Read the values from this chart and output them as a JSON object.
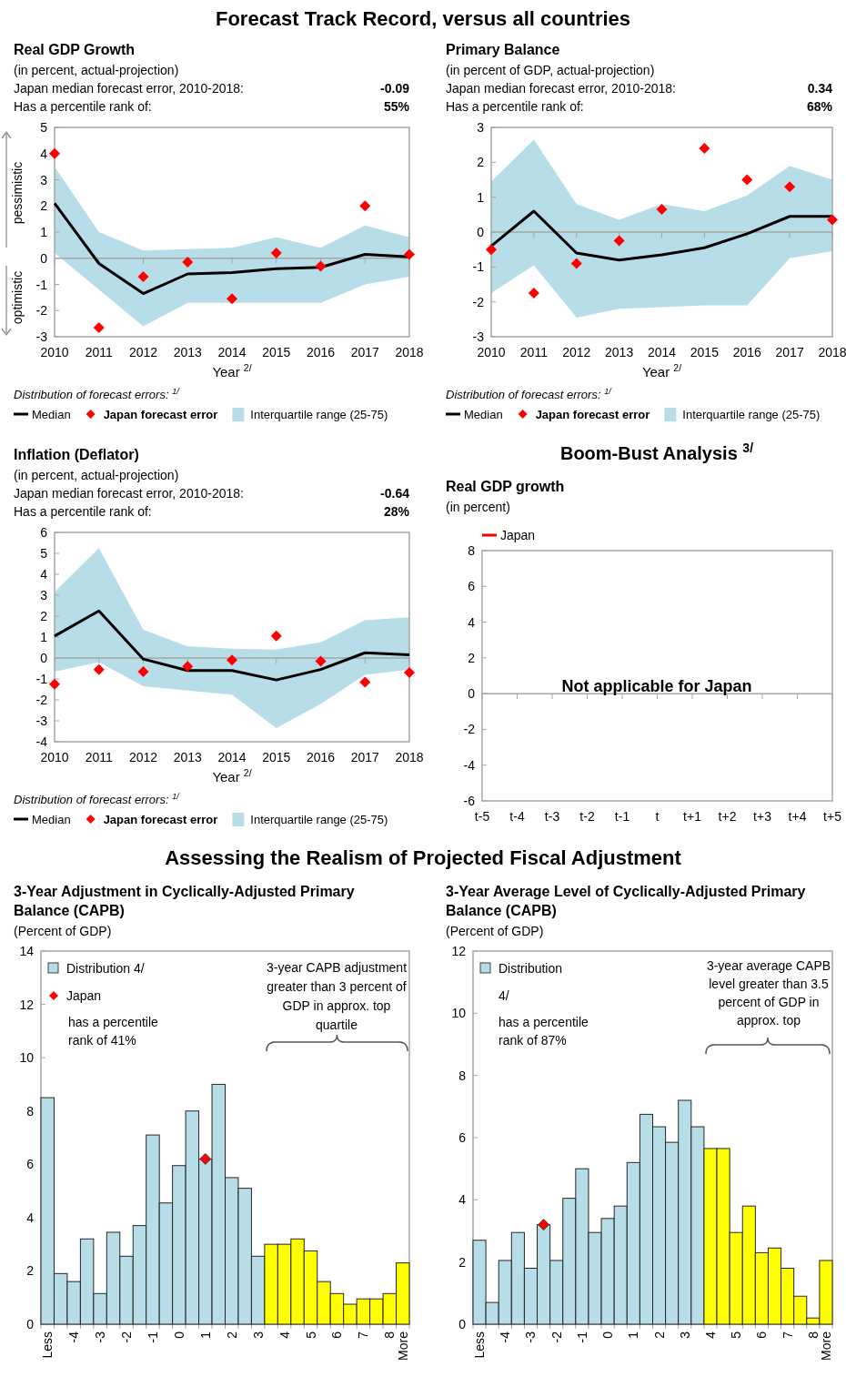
{
  "chart_data": [
    {
      "type": "line",
      "title": "Real GDP Growth",
      "subtitle": "(in percent, actual-projection)",
      "xlabel": "Year $^{2/}$",
      "legend_title": "Distribution of forecast errors: $^{1/}$",
      "legend": "bottom left",
      "annotations": [
        "Forecast Track Record, versus all countries",
        "Japan median forecast error, 2010-2018:",
        "Has a percentile rank of:",
        "-0.09",
        "55%",
        "pessimistic",
        "optimistic",
        "Interquartile range (25-75)"
      ],
      "x": [
        2010,
        2011,
        2012,
        2013,
        2014,
        2015,
        2016,
        2017,
        2018
      ],
      "xlim": [
        2010,
        2018
      ],
      "xticks": [
        2010,
        2011,
        2012,
        2013,
        2014,
        2015,
        2016,
        2017,
        2018
      ],
      "ylim": [
        -3,
        5
      ],
      "yticks": [
        -3,
        -2,
        -1,
        0,
        1,
        2,
        3,
        4,
        5
      ],
      "series": [
        {
          "name": "Median",
          "type": "line",
          "color": "#000000",
          "values": [
            2.1,
            -0.2,
            -1.35,
            -0.6,
            -0.55,
            -0.4,
            -0.35,
            0.15,
            0.05
          ],
          "lower": [
            0.2,
            -1.2,
            -2.6,
            -1.7,
            -1.7,
            -1.7,
            -1.7,
            -1.0,
            -0.7
          ],
          "upper": [
            3.5,
            1.0,
            0.3,
            0.35,
            0.4,
            0.8,
            0.4,
            1.25,
            0.8
          ]
        },
        {
          "name": "Japan forecast error",
          "type": "scatter",
          "marker": "diamond",
          "color": "#ff0000",
          "values": [
            4.0,
            -2.65,
            -0.7,
            -0.15,
            -1.55,
            0.2,
            -0.3,
            2.0,
            0.15
          ]
        }
      ]
    },
    {
      "type": "line",
      "title": "Primary Balance",
      "subtitle": "(in percent of GDP, actual-projection)",
      "xlabel": "Year $^{2/}$",
      "legend_title": "Distribution of forecast errors: $^{1/}$",
      "legend": "bottom left",
      "annotations": [
        "Japan median forecast error, 2010-2018:",
        "Has a percentile rank of:",
        "0.34",
        "68%",
        "Interquartile range (25-75)"
      ],
      "x": [
        2010,
        2011,
        2012,
        2013,
        2014,
        2015,
        2016,
        2017,
        2018
      ],
      "xlim": [
        2010,
        2018
      ],
      "xticks": [
        2010,
        2011,
        2012,
        2013,
        2014,
        2015,
        2016,
        2017,
        2018
      ],
      "ylim": [
        -3,
        3
      ],
      "yticks": [
        -3,
        -2,
        -1,
        0,
        1,
        2,
        3
      ],
      "series": [
        {
          "name": "Median",
          "type": "line",
          "color": "#000000",
          "values": [
            -0.4,
            0.6,
            -0.6,
            -0.8,
            -0.65,
            -0.45,
            -0.05,
            0.45,
            0.45
          ],
          "lower": [
            -1.75,
            -0.95,
            -2.45,
            -2.2,
            -2.15,
            -2.1,
            -2.1,
            -0.75,
            -0.55
          ],
          "upper": [
            1.45,
            2.65,
            0.8,
            0.35,
            0.8,
            0.6,
            1.05,
            1.9,
            1.5
          ]
        },
        {
          "name": "Japan forecast error",
          "type": "scatter",
          "marker": "diamond",
          "color": "#ff0000",
          "values": [
            -0.5,
            -1.75,
            -0.9,
            -0.25,
            0.65,
            2.4,
            1.5,
            1.3,
            0.35
          ]
        }
      ]
    },
    {
      "type": "line",
      "title": "Inflation (Deflator)",
      "subtitle": "(in percent, actual-projection)",
      "xlabel": "Year $^{2/}$",
      "legend_title": "Distribution of forecast errors: $^{1/}$",
      "legend": "bottom left",
      "annotations": [
        "Japan median forecast error, 2010-2018:",
        "Has a percentile rank of:",
        "-0.64",
        "28%",
        "Interquartile range (25-75)"
      ],
      "x": [
        2010,
        2011,
        2012,
        2013,
        2014,
        2015,
        2016,
        2017,
        2018
      ],
      "xlim": [
        2010,
        2018
      ],
      "xticks": [
        2010,
        2011,
        2012,
        2013,
        2014,
        2015,
        2016,
        2017,
        2018
      ],
      "ylim": [
        -4,
        6
      ],
      "yticks": [
        -4,
        -3,
        -2,
        -1,
        0,
        1,
        2,
        3,
        4,
        5,
        6
      ],
      "series": [
        {
          "name": "Median",
          "type": "line",
          "color": "#000000",
          "values": [
            1.05,
            2.25,
            -0.05,
            -0.6,
            -0.6,
            -1.05,
            -0.55,
            0.25,
            0.15
          ],
          "lower": [
            -0.65,
            -0.2,
            -1.35,
            -1.55,
            -1.75,
            -3.35,
            -2.2,
            -0.8,
            -0.55
          ],
          "upper": [
            3.15,
            5.25,
            1.35,
            0.55,
            0.45,
            0.4,
            0.75,
            1.8,
            1.95
          ]
        },
        {
          "name": "Japan forecast error",
          "type": "scatter",
          "marker": "diamond",
          "color": "#ff0000",
          "values": [
            -1.25,
            -0.55,
            -0.65,
            -0.4,
            -0.1,
            1.05,
            -0.15,
            -1.15,
            -0.7
          ]
        }
      ]
    },
    {
      "type": "bar",
      "title": "3-Year Adjustment in Cyclically-Adjusted Primary Balance (CAPB)",
      "subtitle": "(Percent of GDP)",
      "legend": "top left",
      "annotations": [
        "Assessing the Realism of Projected Fiscal Adjustment",
        "has a percentile rank of 41%",
        "3-year CAPB adjustment greater than 3 percent of GDP in approx. top quartile"
      ],
      "categories": [
        "Less",
        null,
        "-4",
        null,
        "-3",
        null,
        "-2",
        null,
        "-1",
        null,
        "0",
        null,
        "1",
        null,
        "2",
        null,
        "3",
        null,
        "4",
        null,
        "5",
        null,
        "6",
        null,
        "7",
        null,
        "8",
        "More"
      ],
      "ylim": [
        0,
        14
      ],
      "yticks": [
        0,
        2,
        4,
        6,
        8,
        10,
        12,
        14
      ],
      "series": [
        {
          "name": "Distribution 4/",
          "colors": [
            "#b7dde8",
            "#b7dde8",
            "#b7dde8",
            "#b7dde8",
            "#b7dde8",
            "#b7dde8",
            "#b7dde8",
            "#b7dde8",
            "#b7dde8",
            "#b7dde8",
            "#b7dde8",
            "#b7dde8",
            "#b7dde8",
            "#b7dde8",
            "#b7dde8",
            "#b7dde8",
            "#b7dde8",
            "#ffff00",
            "#ffff00",
            "#ffff00",
            "#ffff00",
            "#ffff00",
            "#ffff00",
            "#ffff00",
            "#ffff00",
            "#ffff00",
            "#ffff00",
            "#ffff00"
          ],
          "values": [
            8.5,
            1.9,
            1.6,
            3.2,
            1.15,
            3.45,
            2.55,
            3.7,
            7.1,
            4.55,
            5.95,
            8.0,
            6.2,
            9.0,
            5.5,
            5.1,
            2.55,
            3.0,
            3.0,
            3.2,
            2.75,
            1.6,
            1.15,
            0.75,
            0.95,
            0.95,
            1.15,
            2.3
          ]
        },
        {
          "name": "Japan",
          "type": "scatter",
          "marker": "diamond",
          "color": "#ff0000",
          "values": [
            null,
            null,
            null,
            null,
            null,
            null,
            null,
            null,
            null,
            null,
            null,
            null,
            6.2,
            null,
            null,
            null,
            null,
            null,
            null,
            null,
            null,
            null,
            null,
            null,
            null,
            null,
            null,
            null
          ]
        }
      ]
    },
    {
      "type": "bar",
      "title": "3-Year Average Level of Cyclically-Adjusted Primary Balance (CAPB)",
      "subtitle": "(Percent of GDP)",
      "legend": "top left",
      "annotations": [
        "has a percentile rank of 87%",
        "3-year average CAPB level greater than 3.5 percent of GDP in approx. top"
      ],
      "categories": [
        "Less",
        null,
        "-4",
        null,
        "-3",
        null,
        "-2",
        null,
        "-1",
        null,
        "0",
        null,
        "1",
        null,
        "2",
        null,
        "3",
        null,
        "4",
        null,
        "5",
        null,
        "6",
        null,
        "7",
        null,
        "8",
        "More"
      ],
      "ylim": [
        0,
        12
      ],
      "yticks": [
        0,
        2,
        4,
        6,
        8,
        10,
        12
      ],
      "series": [
        {
          "name": "Distribution 4/",
          "colors": [
            "#b7dde8",
            "#b7dde8",
            "#b7dde8",
            "#b7dde8",
            "#b7dde8",
            "#b7dde8",
            "#b7dde8",
            "#b7dde8",
            "#b7dde8",
            "#b7dde8",
            "#b7dde8",
            "#b7dde8",
            "#b7dde8",
            "#b7dde8",
            "#b7dde8",
            "#b7dde8",
            "#b7dde8",
            "#b7dde8",
            "#ffff00",
            "#ffff00",
            "#ffff00",
            "#ffff00",
            "#ffff00",
            "#ffff00",
            "#ffff00",
            "#ffff00",
            "#ffff00",
            "#ffff00"
          ],
          "values": [
            2.7,
            0.7,
            2.05,
            2.95,
            1.8,
            3.2,
            2.05,
            4.05,
            5.0,
            2.95,
            3.4,
            3.8,
            5.2,
            6.75,
            6.35,
            5.85,
            7.2,
            6.35,
            5.65,
            5.65,
            2.95,
            3.8,
            2.3,
            2.45,
            1.8,
            0.9,
            0.2,
            2.05
          ]
        },
        {
          "type": "scatter",
          "marker": "diamond",
          "color": "#ff0000",
          "values": [
            null,
            null,
            null,
            null,
            null,
            3.2,
            null,
            null,
            null,
            null,
            null,
            null,
            null,
            null,
            null,
            null,
            null,
            null,
            null,
            null,
            null,
            null,
            null,
            null,
            null,
            null,
            null,
            null
          ]
        }
      ]
    },
    {
      "type": "line",
      "title": "Real GDP growth",
      "subtitle": "(in percent)",
      "legend": "top left",
      "annotations": [
        "Boom-Bust Analysis $^{3/}$",
        "Not applicable for Japan"
      ],
      "categories": [
        "t-5",
        "t-4",
        "t-3",
        "t-2",
        "t-1",
        "t",
        "t+1",
        "t+2",
        "t+3",
        "t+4",
        "t+5"
      ],
      "ylim": [
        -6,
        8
      ],
      "yticks": [
        -6,
        -4,
        -2,
        0,
        2,
        4,
        6,
        8
      ],
      "series": [
        {
          "name": "Japan",
          "color": "#ff0000",
          "values": [
            null,
            null,
            null,
            null,
            null,
            null,
            null,
            null,
            null,
            null,
            null
          ]
        }
      ]
    }
  ]
}
